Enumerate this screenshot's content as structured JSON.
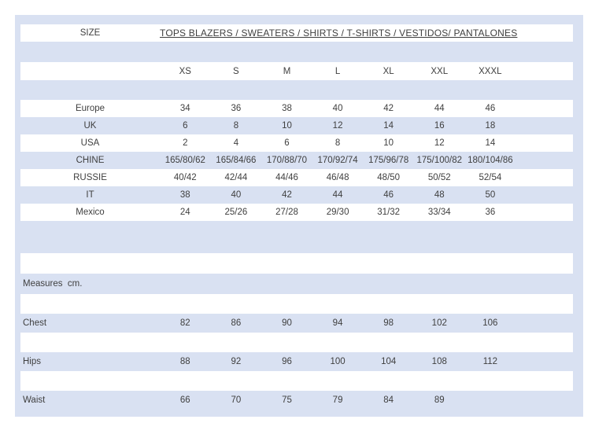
{
  "table": {
    "size_label": "SIZE",
    "title": "TOPS BLAZERS / SWEATERS / SHIRTS / T-SHIRTS / VESTIDOS/ PANTALONES",
    "size_headers": [
      "XS",
      "S",
      "M",
      "L",
      "XL",
      "XXL",
      "XXXL"
    ],
    "region_rows": [
      {
        "label": "Europe",
        "values": [
          "34",
          "36",
          "38",
          "40",
          "42",
          "44",
          "46"
        ]
      },
      {
        "label": "UK",
        "values": [
          "6",
          "8",
          "10",
          "12",
          "14",
          "16",
          "18"
        ]
      },
      {
        "label": "USA",
        "values": [
          "2",
          "4",
          "6",
          "8",
          "10",
          "12",
          "14"
        ]
      },
      {
        "label": "CHINE",
        "values": [
          "165/80/62",
          "165/84/66",
          "170/88/70",
          "170/92/74",
          "175/96/78",
          "175/100/82",
          "180/104/86"
        ]
      },
      {
        "label": "RUSSIE",
        "values": [
          "40/42",
          "42/44",
          "44/46",
          "46/48",
          "48/50",
          "50/52",
          "52/54"
        ]
      },
      {
        "label": "IT",
        "values": [
          "38",
          "40",
          "42",
          "44",
          "46",
          "48",
          "50"
        ]
      },
      {
        "label": "Mexico",
        "values": [
          "24",
          "25/26",
          "27/28",
          "29/30",
          "31/32",
          "33/34",
          "36"
        ]
      }
    ],
    "measures_label": "Measures  cm.",
    "measure_rows": [
      {
        "label": "Chest",
        "values": [
          "82",
          "86",
          "90",
          "94",
          "98",
          "102",
          "106"
        ]
      },
      {
        "label": "Hips",
        "values": [
          "88",
          "92",
          "96",
          "100",
          "104",
          "108",
          "112"
        ]
      },
      {
        "label": "Waist",
        "values": [
          "66",
          "70",
          "75",
          "79",
          "84",
          "89",
          ""
        ]
      }
    ],
    "colors": {
      "stripe": "#d9e1f2",
      "text": "#3f3f3f"
    }
  }
}
